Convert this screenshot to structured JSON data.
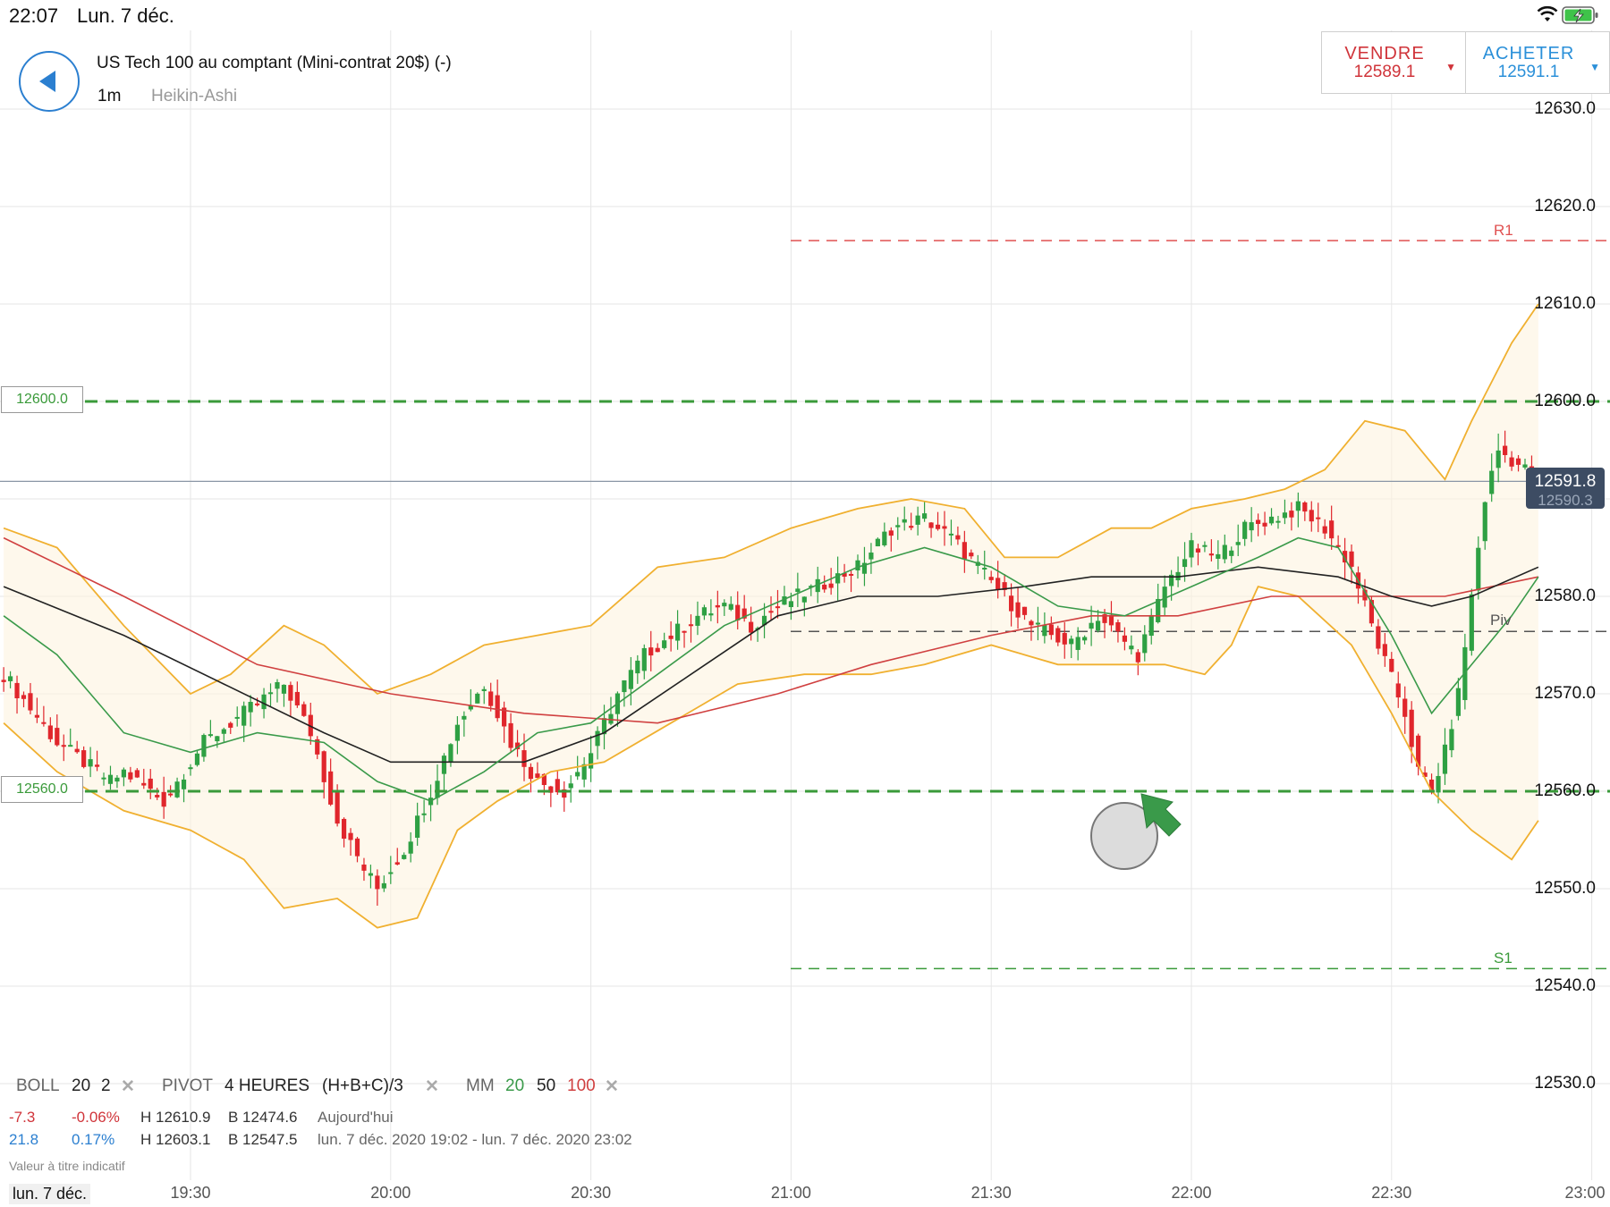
{
  "status_bar": {
    "time": "22:07",
    "date": "Lun. 7 déc.",
    "wifi_icon": "wifi-icon",
    "battery_icon": "battery-charging-icon"
  },
  "header": {
    "back_icon": "back-arrow-icon",
    "instrument_title": "US Tech 100 au comptant (Mini-contrat 20$) (-)",
    "timeframe": "1m",
    "chart_type": "Heikin-Ashi"
  },
  "trade": {
    "sell_label": "VENDRE",
    "sell_price": "12589.1",
    "buy_label": "ACHETER",
    "buy_price": "12591.1",
    "sell_color": "#d0343a",
    "buy_color": "#2b90d9"
  },
  "price_tag": {
    "value": "12591.8",
    "hidden_value": "12590.3"
  },
  "level_tags": {
    "upper": "12600.0",
    "lower": "12560.0"
  },
  "pivots": {
    "r1_label": "R1",
    "piv_label": "Piv",
    "s1_label": "S1"
  },
  "indicators": {
    "boll_name": "BOLL",
    "boll_period": "20",
    "boll_dev": "2",
    "pivot_name": "PIVOT",
    "pivot_period": "4 HEURES",
    "pivot_formula": "(H+B+C)/3",
    "mm_name": "MM",
    "mm_1": "20",
    "mm_2": "50",
    "mm_3": "100",
    "remove_glyph": "✕"
  },
  "stats": {
    "row1": {
      "change": "-7.3",
      "change_pct": "-0.06%",
      "high": "H 12610.9",
      "low": "B 12474.6",
      "period": "Aujourd'hui"
    },
    "row2": {
      "change": "21.8",
      "change_pct": "0.17%",
      "high": "H 12603.1",
      "low": "B 12547.5",
      "period": "lun. 7 déc. 2020 19:02 - lun. 7 déc. 2020 23:02"
    }
  },
  "disclaimer": "Valeur à titre indicatif",
  "date_footer": "lun. 7 déc.",
  "chart_data": {
    "type": "candlestick",
    "y_axis": {
      "ticks": [
        "12630.0",
        "12620.0",
        "12610.0",
        "12600.0",
        "12590.0",
        "12580.0",
        "12570.0",
        "12560.0",
        "12550.0",
        "12540.0",
        "12530.0"
      ],
      "range": [
        12525,
        12640
      ]
    },
    "x_axis": {
      "ticks": [
        "19:30",
        "20:00",
        "20:30",
        "21:00",
        "21:30",
        "22:00",
        "22:30",
        "23:00"
      ],
      "range_minutes": [
        1142,
        1382
      ]
    },
    "levels": {
      "r1": 12616.5,
      "pivot": 12576.4,
      "s1": 12541.8,
      "upper_line": 12600.0,
      "lower_line": 12560.0,
      "last_price": 12591.8
    },
    "colors": {
      "up": "#2ea043",
      "down": "#e0262c",
      "boll": "#f0b030",
      "mm20": "#3a9a4a",
      "mm50": "#222222",
      "mm100": "#d04040"
    },
    "close_path": [
      [
        1142,
        12572
      ],
      [
        1150,
        12565
      ],
      [
        1158,
        12561
      ],
      [
        1160,
        12562
      ],
      [
        1166,
        12559
      ],
      [
        1172,
        12565
      ],
      [
        1178,
        12568
      ],
      [
        1184,
        12571
      ],
      [
        1188,
        12566
      ],
      [
        1192,
        12557
      ],
      [
        1196,
        12552
      ],
      [
        1198,
        12550
      ],
      [
        1202,
        12554
      ],
      [
        1206,
        12560
      ],
      [
        1210,
        12567
      ],
      [
        1214,
        12571
      ],
      [
        1218,
        12565
      ],
      [
        1222,
        12561
      ],
      [
        1226,
        12560
      ],
      [
        1230,
        12564
      ],
      [
        1234,
        12570
      ],
      [
        1238,
        12574
      ],
      [
        1242,
        12576
      ],
      [
        1246,
        12578
      ],
      [
        1250,
        12579
      ],
      [
        1254,
        12577
      ],
      [
        1258,
        12579
      ],
      [
        1264,
        12581
      ],
      [
        1270,
        12583
      ],
      [
        1275,
        12587
      ],
      [
        1280,
        12588
      ],
      [
        1284,
        12586
      ],
      [
        1288,
        12583
      ],
      [
        1292,
        12580
      ],
      [
        1296,
        12577
      ],
      [
        1302,
        12575
      ],
      [
        1306,
        12578
      ],
      [
        1312,
        12574
      ],
      [
        1316,
        12581
      ],
      [
        1320,
        12585
      ],
      [
        1324,
        12584
      ],
      [
        1328,
        12587
      ],
      [
        1332,
        12588
      ],
      [
        1336,
        12589
      ],
      [
        1340,
        12587
      ],
      [
        1344,
        12583
      ],
      [
        1348,
        12575
      ],
      [
        1352,
        12568
      ],
      [
        1354,
        12562
      ],
      [
        1356,
        12560
      ],
      [
        1358,
        12564
      ],
      [
        1360,
        12570
      ],
      [
        1362,
        12580
      ],
      [
        1364,
        12590
      ],
      [
        1366,
        12595
      ],
      [
        1368,
        12594
      ],
      [
        1370,
        12593
      ],
      [
        1372,
        12592
      ]
    ],
    "mm20": [
      [
        1142,
        12578
      ],
      [
        1150,
        12574
      ],
      [
        1160,
        12566
      ],
      [
        1170,
        12564
      ],
      [
        1180,
        12566
      ],
      [
        1190,
        12565
      ],
      [
        1198,
        12561
      ],
      [
        1206,
        12559
      ],
      [
        1214,
        12562
      ],
      [
        1222,
        12566
      ],
      [
        1230,
        12567
      ],
      [
        1240,
        12572
      ],
      [
        1250,
        12577
      ],
      [
        1260,
        12580
      ],
      [
        1270,
        12583
      ],
      [
        1280,
        12585
      ],
      [
        1290,
        12583
      ],
      [
        1300,
        12579
      ],
      [
        1310,
        12578
      ],
      [
        1320,
        12581
      ],
      [
        1330,
        12584
      ],
      [
        1336,
        12586
      ],
      [
        1342,
        12585
      ],
      [
        1350,
        12576
      ],
      [
        1356,
        12568
      ],
      [
        1362,
        12573
      ],
      [
        1368,
        12578
      ],
      [
        1372,
        12582
      ]
    ],
    "mm50": [
      [
        1142,
        12581
      ],
      [
        1160,
        12576
      ],
      [
        1175,
        12571
      ],
      [
        1190,
        12566
      ],
      [
        1200,
        12563
      ],
      [
        1210,
        12563
      ],
      [
        1220,
        12563
      ],
      [
        1232,
        12566
      ],
      [
        1245,
        12572
      ],
      [
        1258,
        12578
      ],
      [
        1270,
        12580
      ],
      [
        1282,
        12580
      ],
      [
        1295,
        12581
      ],
      [
        1305,
        12582
      ],
      [
        1318,
        12582
      ],
      [
        1330,
        12583
      ],
      [
        1342,
        12582
      ],
      [
        1350,
        12580
      ],
      [
        1356,
        12579
      ],
      [
        1362,
        12580
      ],
      [
        1372,
        12583
      ]
    ],
    "mm100": [
      [
        1142,
        12586
      ],
      [
        1160,
        12580
      ],
      [
        1180,
        12573
      ],
      [
        1200,
        12570
      ],
      [
        1220,
        12568
      ],
      [
        1240,
        12567
      ],
      [
        1258,
        12570
      ],
      [
        1272,
        12573
      ],
      [
        1290,
        12576
      ],
      [
        1305,
        12578
      ],
      [
        1318,
        12578
      ],
      [
        1332,
        12580
      ],
      [
        1345,
        12580
      ],
      [
        1358,
        12580
      ],
      [
        1372,
        12582
      ]
    ],
    "boll_upper": [
      [
        1142,
        12587
      ],
      [
        1150,
        12585
      ],
      [
        1160,
        12577
      ],
      [
        1170,
        12570
      ],
      [
        1176,
        12572
      ],
      [
        1184,
        12577
      ],
      [
        1190,
        12575
      ],
      [
        1198,
        12570
      ],
      [
        1206,
        12572
      ],
      [
        1214,
        12575
      ],
      [
        1222,
        12576
      ],
      [
        1230,
        12577
      ],
      [
        1240,
        12583
      ],
      [
        1250,
        12584
      ],
      [
        1260,
        12587
      ],
      [
        1270,
        12589
      ],
      [
        1278,
        12590
      ],
      [
        1286,
        12589
      ],
      [
        1292,
        12584
      ],
      [
        1300,
        12584
      ],
      [
        1308,
        12587
      ],
      [
        1314,
        12587
      ],
      [
        1320,
        12589
      ],
      [
        1328,
        12590
      ],
      [
        1334,
        12591
      ],
      [
        1340,
        12593
      ],
      [
        1346,
        12598
      ],
      [
        1352,
        12597
      ],
      [
        1358,
        12592
      ],
      [
        1362,
        12598
      ],
      [
        1368,
        12606
      ],
      [
        1372,
        12610
      ]
    ],
    "boll_lower": [
      [
        1142,
        12567
      ],
      [
        1150,
        12562
      ],
      [
        1160,
        12558
      ],
      [
        1170,
        12556
      ],
      [
        1178,
        12553
      ],
      [
        1184,
        12548
      ],
      [
        1192,
        12549
      ],
      [
        1198,
        12546
      ],
      [
        1204,
        12547
      ],
      [
        1210,
        12556
      ],
      [
        1216,
        12559
      ],
      [
        1224,
        12562
      ],
      [
        1232,
        12563
      ],
      [
        1242,
        12567
      ],
      [
        1252,
        12571
      ],
      [
        1262,
        12572
      ],
      [
        1272,
        12572
      ],
      [
        1280,
        12573
      ],
      [
        1290,
        12575
      ],
      [
        1300,
        12573
      ],
      [
        1308,
        12573
      ],
      [
        1316,
        12573
      ],
      [
        1322,
        12572
      ],
      [
        1326,
        12575
      ],
      [
        1330,
        12581
      ],
      [
        1336,
        12580
      ],
      [
        1344,
        12575
      ],
      [
        1350,
        12568
      ],
      [
        1356,
        12560
      ],
      [
        1362,
        12556
      ],
      [
        1368,
        12553
      ],
      [
        1372,
        12557
      ]
    ]
  }
}
